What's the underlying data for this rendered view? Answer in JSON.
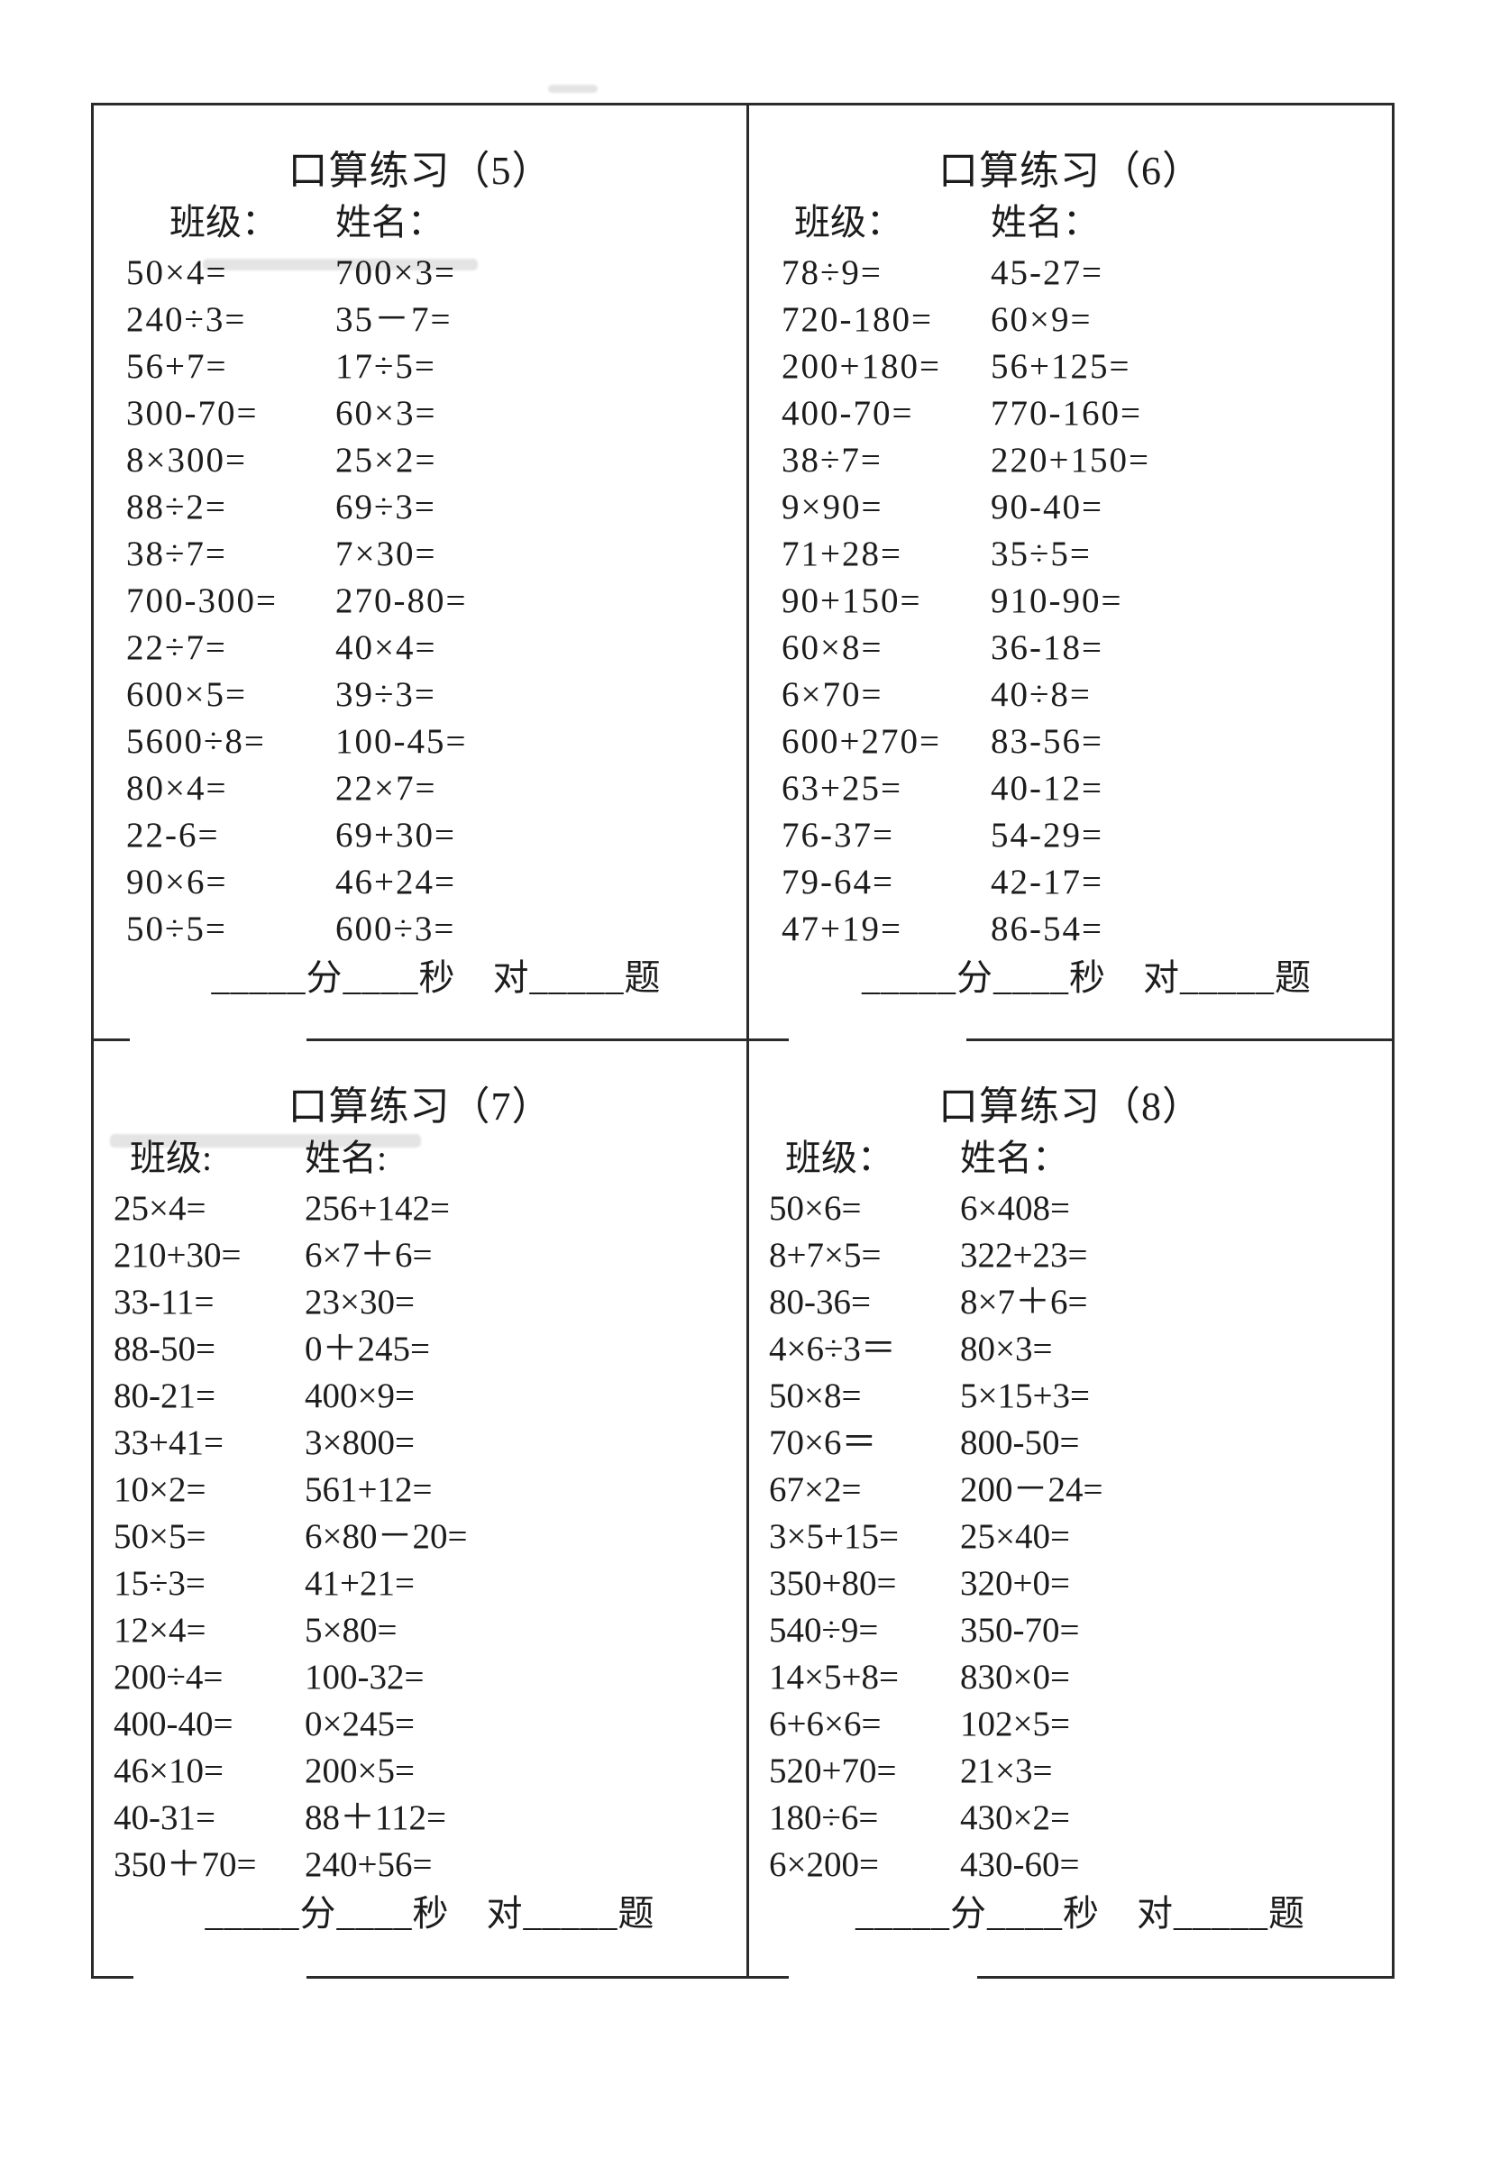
{
  "colors": {
    "paper": "#ffffff",
    "ink": "#1c1c1c",
    "line": "#2b2b2b"
  },
  "worksheets": [
    {
      "title": "口算练习（5）",
      "class_label": "班级：",
      "name_label": "姓名：",
      "problems_left": [
        "50×4=",
        "240÷3=",
        "56+7=",
        "300-70=",
        "8×300=",
        "88÷2=",
        "38÷7=",
        "700-300=",
        "22÷7=",
        "600×5=",
        "5600÷8=",
        "80×4=",
        "22-6=",
        "90×6=",
        "50÷5="
      ],
      "problems_right": [
        "700×3=",
        "35－7=",
        "17÷5=",
        "60×3=",
        "25×2=",
        "69÷3=",
        "7×30=",
        "270-80=",
        "40×4=",
        "39÷3=",
        "100-45=",
        "22×7=",
        "69+30=",
        "46+24=",
        "600÷3="
      ],
      "footer": "_____分____秒　对_____题"
    },
    {
      "title": "口算练习（6）",
      "class_label": "班级：",
      "name_label": "姓名：",
      "problems_left": [
        "78÷9=",
        "720-180=",
        "200+180=",
        "400-70=",
        "38÷7=",
        "9×90=",
        "71+28=",
        "90+150=",
        "60×8=",
        "6×70=",
        "600+270=",
        "63+25=",
        "76-37=",
        "79-64=",
        "47+19="
      ],
      "problems_right": [
        "45-27=",
        "60×9=",
        "56+125=",
        "770-160=",
        "220+150=",
        "90-40=",
        "35÷5=",
        "910-90=",
        "36-18=",
        "40÷8=",
        "83-56=",
        "40-12=",
        "54-29=",
        "42-17=",
        "86-54="
      ],
      "footer": "_____分____秒　对_____题"
    },
    {
      "title": "口算练习（7）",
      "class_label": "班级:",
      "name_label": "姓名:",
      "problems_left": [
        "25×4=",
        "210+30=",
        "33-11=",
        "88-50=",
        "80-21=",
        "33+41=",
        "10×2=",
        "50×5=",
        "15÷3=",
        "12×4=",
        "200÷4=",
        "400-40=",
        "46×10=",
        "40-31=",
        "350＋70="
      ],
      "problems_right": [
        "256+142=",
        "6×7＋6=",
        "23×30=",
        "0＋245=",
        "400×9=",
        "3×800=",
        "561+12=",
        "6×80－20=",
        "41+21=",
        "5×80=",
        "100-32=",
        "0×245=",
        "200×5=",
        "88＋112=",
        "240+56="
      ],
      "footer": "_____分____秒　对_____题"
    },
    {
      "title": "口算练习（8）",
      "class_label": "班级：",
      "name_label": "姓名：",
      "problems_left": [
        "50×6=",
        "8+7×5=",
        "80-36=",
        "4×6÷3＝",
        "50×8=",
        "70×6＝",
        "67×2=",
        "3×5+15=",
        "350+80=",
        "540÷9=",
        "14×5+8=",
        "6+6×6=",
        "520+70=",
        "180÷6=",
        "6×200="
      ],
      "problems_right": [
        "6×408=",
        "322+23=",
        "8×7＋6=",
        "80×3=",
        "5×15+3=",
        "800-50=",
        "200－24=",
        "25×40=",
        "320+0=",
        "350-70=",
        "830×0=",
        "102×5=",
        "21×3=",
        "430×2=",
        "430-60="
      ],
      "footer": "_____分____秒　对_____题"
    }
  ]
}
